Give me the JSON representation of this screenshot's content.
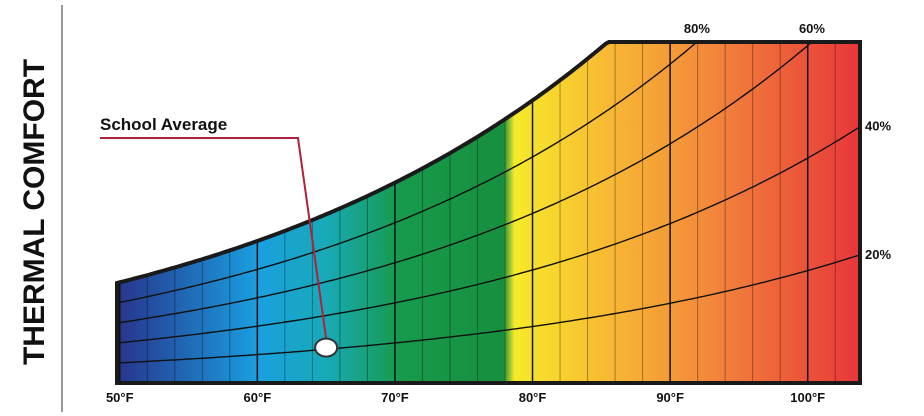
{
  "chart_data": {
    "type": "psychrometric",
    "title": "THERMAL COMFORT",
    "xlim": [
      49.8,
      103.8
    ],
    "xticks": [
      {
        "value": 50,
        "label": "50°F"
      },
      {
        "value": 60,
        "label": "60°F"
      },
      {
        "value": 70,
        "label": "70°F"
      },
      {
        "value": 80,
        "label": "80°F"
      },
      {
        "value": 90,
        "label": "90°F"
      },
      {
        "value": 100,
        "label": "100°F"
      }
    ],
    "minor_xticks": [
      52,
      54,
      56,
      58,
      62,
      64,
      66,
      68,
      72,
      74,
      76,
      78,
      82,
      84,
      86,
      88,
      92,
      94,
      96,
      98,
      102
    ],
    "rh_lines": {
      "values": [
        80,
        60,
        40,
        20
      ],
      "value_labels": [
        "80%",
        "60%",
        "40%",
        "20%"
      ]
    },
    "marker": {
      "label": "School Average",
      "x": 65,
      "rh": 21,
      "color": "#b0213a"
    }
  }
}
